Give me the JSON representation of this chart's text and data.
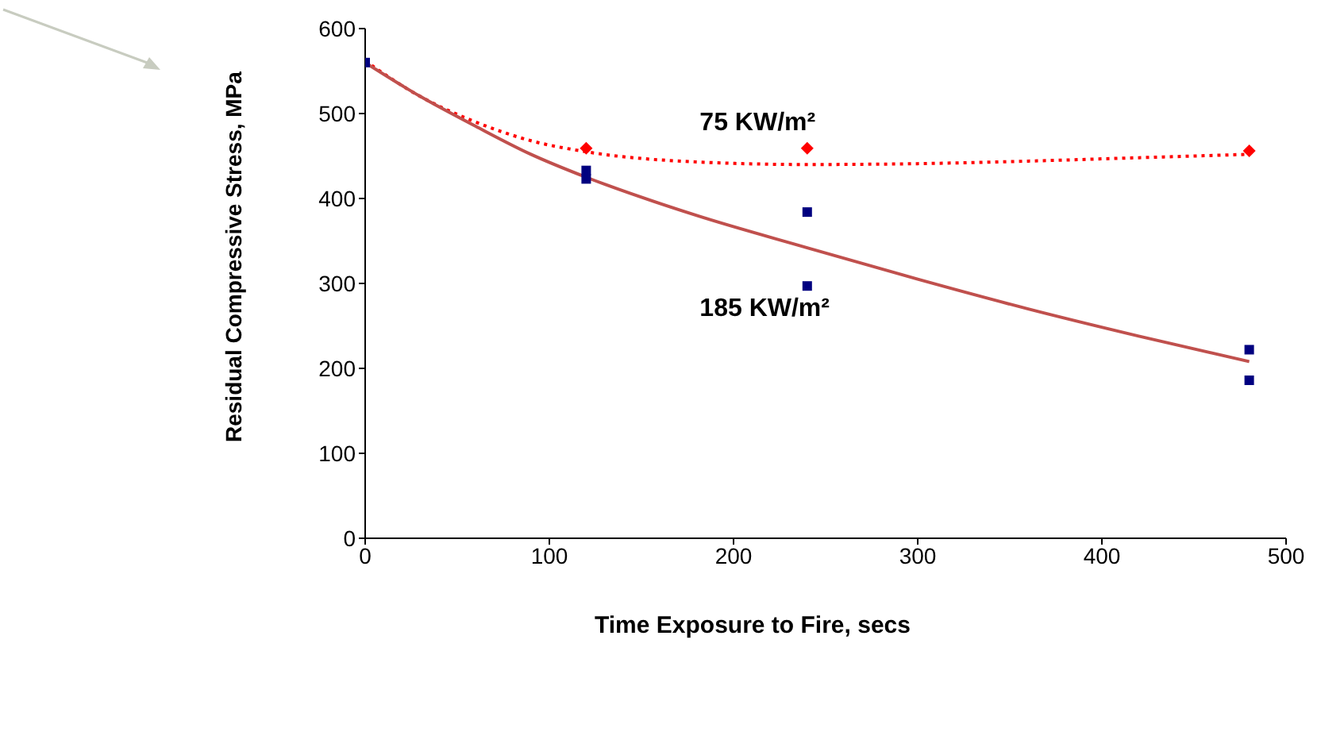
{
  "chart_data": {
    "type": "scatter",
    "xlabel": "Time Exposure to Fire, secs",
    "ylabel": "Residual Compressive Stress, MPa",
    "xlim": [
      0,
      500
    ],
    "xticks": [
      0,
      100,
      200,
      300,
      400,
      500
    ],
    "ylim": [
      0,
      600
    ],
    "yticks": [
      0,
      100,
      200,
      300,
      400,
      500,
      600
    ],
    "grid": false,
    "legend": false,
    "series": [
      {
        "name": "75 KW/m²",
        "marker": "diamond",
        "color": "#ff0000",
        "x": [
          120,
          240,
          480
        ],
        "values": [
          459,
          459,
          456
        ]
      },
      {
        "name": "185 KW/m²",
        "marker": "square",
        "color": "#000080",
        "x": [
          0,
          120,
          120,
          240,
          240,
          480,
          480
        ],
        "values": [
          560,
          433,
          423,
          384,
          297,
          222,
          186
        ]
      },
      {
        "type": "line",
        "marker": "none",
        "line_style": "dotted",
        "color": "#ff0000",
        "x": [
          0,
          30,
          60,
          90,
          120,
          180,
          240,
          300,
          360,
          420,
          480
        ],
        "values": [
          562,
          520,
          490,
          468,
          455,
          443,
          440,
          441,
          444,
          448,
          452
        ]
      },
      {
        "type": "line",
        "marker": "none",
        "line_style": "solid",
        "color": "#c0504d",
        "x": [
          0,
          30,
          60,
          90,
          120,
          180,
          240,
          300,
          360,
          420,
          480
        ],
        "values": [
          560,
          520,
          485,
          452,
          425,
          380,
          342,
          305,
          270,
          238,
          208
        ]
      }
    ]
  }
}
